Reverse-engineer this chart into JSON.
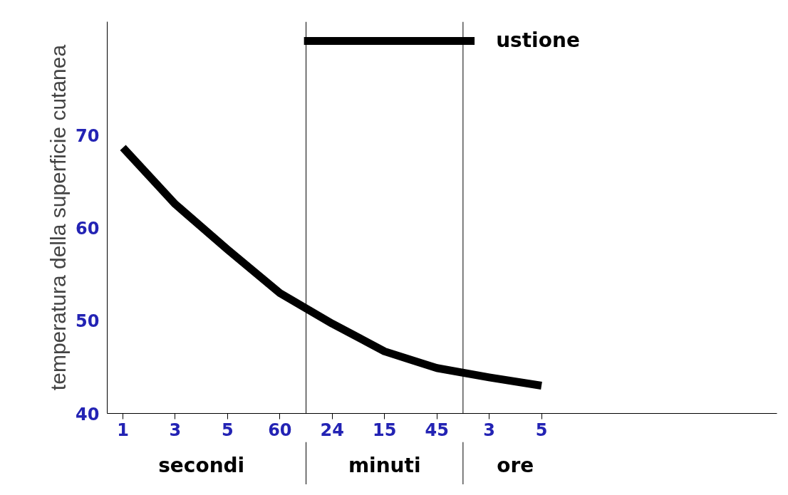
{
  "chart_data": {
    "type": "line",
    "ylabel": "temperatura della superficie cutanea",
    "categories": [
      "1",
      "3",
      "5",
      "60",
      "24",
      "15",
      "45",
      "3",
      "5"
    ],
    "series": [
      {
        "name": "ustione",
        "color": "#000000",
        "values": [
          68.7,
          62.6,
          57.7,
          53.0,
          49.7,
          46.7,
          44.9,
          43.9,
          43.0
        ]
      }
    ],
    "ylim": [
      40,
      82.3
    ],
    "yticks": [
      40,
      50,
      60,
      70
    ],
    "annotations": [
      "secondi",
      "minuti",
      "ore"
    ],
    "legend": "top",
    "grid": false,
    "marker": "none",
    "line_style": "solid"
  }
}
